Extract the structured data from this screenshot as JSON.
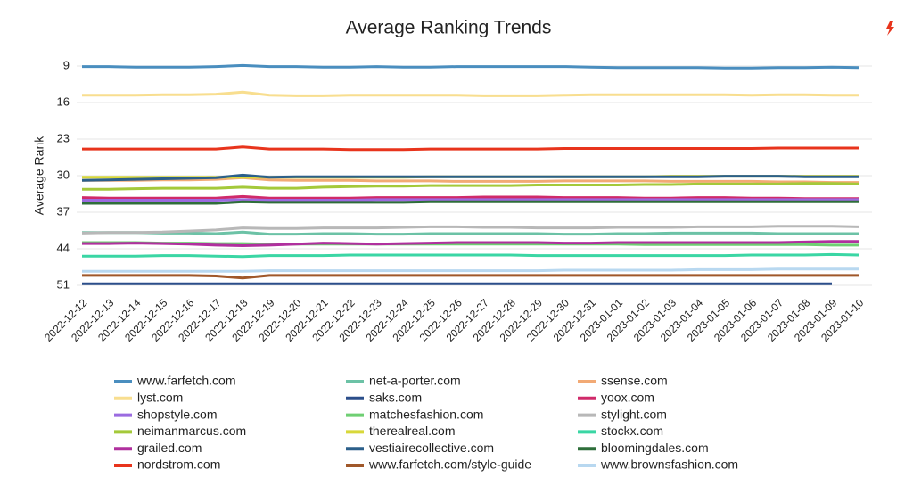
{
  "chart_data": {
    "type": "line",
    "title": "Average Ranking Trends",
    "y_label": "Average Rank",
    "ylim": [
      51,
      9
    ],
    "yticks": [
      9,
      16,
      23,
      30,
      37,
      44,
      51
    ],
    "grid": true,
    "x": [
      "2022-12-12",
      "2022-12-13",
      "2022-12-14",
      "2022-12-15",
      "2022-12-16",
      "2022-12-17",
      "2022-12-18",
      "2022-12-19",
      "2022-12-20",
      "2022-12-21",
      "2022-12-22",
      "2022-12-23",
      "2022-12-24",
      "2022-12-25",
      "2022-12-26",
      "2022-12-27",
      "2022-12-28",
      "2022-12-29",
      "2022-12-30",
      "2022-12-31",
      "2023-01-01",
      "2023-01-02",
      "2023-01-03",
      "2023-01-04",
      "2023-01-05",
      "2023-01-06",
      "2023-01-07",
      "2023-01-08",
      "2023-01-09",
      "2023-01-10"
    ],
    "series": [
      {
        "name": "www.farfetch.com",
        "color": "#4a8ebf",
        "values": [
          9.1,
          9.1,
          9.2,
          9.2,
          9.2,
          9.1,
          8.9,
          9.1,
          9.1,
          9.2,
          9.2,
          9.1,
          9.2,
          9.2,
          9.1,
          9.1,
          9.1,
          9.1,
          9.1,
          9.2,
          9.3,
          9.3,
          9.3,
          9.3,
          9.4,
          9.4,
          9.3,
          9.3,
          9.2,
          9.3
        ]
      },
      {
        "name": "net-a-porter.com",
        "color": "#6cc2a6",
        "values": [
          40.9,
          40.9,
          40.9,
          41.0,
          41.0,
          41.1,
          40.8,
          41.2,
          41.2,
          41.1,
          41.1,
          41.2,
          41.2,
          41.1,
          41.1,
          41.1,
          41.1,
          41.1,
          41.2,
          41.2,
          41.1,
          41.1,
          41.0,
          41.0,
          41.0,
          41.0,
          41.1,
          41.1,
          41.1,
          41.1
        ]
      },
      {
        "name": "ssense.com",
        "color": "#f2aa75",
        "values": [
          30.9,
          30.9,
          30.9,
          30.8,
          30.8,
          30.7,
          30.4,
          30.8,
          30.9,
          30.9,
          30.9,
          31.0,
          31.0,
          31.0,
          31.1,
          31.1,
          31.1,
          31.1,
          31.0,
          31.0,
          31.0,
          31.0,
          31.1,
          31.1,
          31.1,
          31.1,
          31.2,
          31.2,
          31.3,
          31.3
        ]
      },
      {
        "name": "lyst.com",
        "color": "#f8de8f",
        "values": [
          14.6,
          14.6,
          14.6,
          14.5,
          14.5,
          14.4,
          14.0,
          14.6,
          14.7,
          14.7,
          14.6,
          14.6,
          14.6,
          14.6,
          14.6,
          14.7,
          14.7,
          14.7,
          14.6,
          14.5,
          14.5,
          14.5,
          14.5,
          14.5,
          14.5,
          14.6,
          14.5,
          14.5,
          14.6,
          14.6
        ]
      },
      {
        "name": "saks.com",
        "color": "#2b4e8a",
        "values": [
          50.7,
          50.7,
          50.7,
          50.7,
          50.7,
          50.7,
          50.7,
          50.7,
          50.7,
          50.7,
          50.7,
          50.7,
          50.7,
          50.7,
          50.7,
          50.7,
          50.7,
          50.7,
          50.7,
          50.7,
          50.7,
          50.7,
          50.7,
          50.7,
          50.7,
          50.7,
          50.7,
          50.7,
          50.7,
          null
        ]
      },
      {
        "name": "yoox.com",
        "color": "#d02a6a",
        "values": [
          34.2,
          34.3,
          34.3,
          34.3,
          34.3,
          34.3,
          34.0,
          34.3,
          34.3,
          34.3,
          34.3,
          34.2,
          34.2,
          34.2,
          34.2,
          34.1,
          34.1,
          34.1,
          34.2,
          34.2,
          34.2,
          34.3,
          34.3,
          34.2,
          34.2,
          34.3,
          34.3,
          34.4,
          34.4,
          34.4
        ]
      },
      {
        "name": "shopstyle.com",
        "color": "#9b6be0",
        "values": [
          34.7,
          34.7,
          34.7,
          34.7,
          34.7,
          34.7,
          34.6,
          34.7,
          34.7,
          34.7,
          34.7,
          34.6,
          34.6,
          34.6,
          34.6,
          34.6,
          34.6,
          34.6,
          34.6,
          34.6,
          34.6,
          34.6,
          34.6,
          34.6,
          34.6,
          34.6,
          34.6,
          34.6,
          34.6,
          34.6
        ]
      },
      {
        "name": "matchesfashion.com",
        "color": "#6fcf73",
        "values": [
          42.8,
          42.8,
          42.8,
          42.9,
          42.9,
          43.0,
          43.0,
          43.1,
          43.1,
          43.1,
          43.1,
          43.1,
          43.1,
          43.1,
          43.1,
          43.1,
          43.1,
          43.1,
          43.1,
          43.1,
          43.1,
          43.2,
          43.2,
          43.2,
          43.2,
          43.2,
          43.2,
          43.2,
          43.3,
          43.3
        ]
      },
      {
        "name": "stylight.com",
        "color": "#b8b8b8",
        "values": [
          41.0,
          40.9,
          40.9,
          40.8,
          40.6,
          40.4,
          40.0,
          40.1,
          40.1,
          40.0,
          40.0,
          40.0,
          39.9,
          39.8,
          39.8,
          39.9,
          39.9,
          40.0,
          40.0,
          40.0,
          39.9,
          39.9,
          39.9,
          39.8,
          39.8,
          39.8,
          39.7,
          39.7,
          39.7,
          39.8
        ]
      },
      {
        "name": "neimanmarcus.com",
        "color": "#a4c93a",
        "values": [
          32.6,
          32.6,
          32.5,
          32.4,
          32.4,
          32.4,
          32.2,
          32.4,
          32.4,
          32.2,
          32.1,
          32.0,
          32.0,
          31.9,
          31.9,
          31.9,
          31.9,
          31.8,
          31.8,
          31.8,
          31.8,
          31.7,
          31.7,
          31.6,
          31.6,
          31.6,
          31.6,
          31.5,
          31.5,
          31.6
        ]
      },
      {
        "name": "therealreal.com",
        "color": "#d8d83a",
        "values": [
          30.3,
          30.3,
          30.3,
          30.3,
          30.3,
          30.3,
          30.3,
          30.3,
          30.3,
          30.3,
          30.3,
          30.3,
          30.3,
          30.2,
          30.2,
          30.2,
          30.2,
          30.2,
          30.2,
          30.2,
          30.2,
          30.2,
          30.1,
          30.1,
          30.1,
          30.1,
          30.1,
          30.1,
          30.1,
          30.1
        ]
      },
      {
        "name": "stockx.com",
        "color": "#3ad6a4",
        "values": [
          45.4,
          45.4,
          45.4,
          45.3,
          45.3,
          45.4,
          45.5,
          45.3,
          45.3,
          45.3,
          45.2,
          45.2,
          45.2,
          45.2,
          45.2,
          45.2,
          45.2,
          45.3,
          45.3,
          45.3,
          45.3,
          45.3,
          45.3,
          45.3,
          45.3,
          45.2,
          45.2,
          45.2,
          45.1,
          45.2
        ]
      },
      {
        "name": "grailed.com",
        "color": "#b0309e",
        "values": [
          43.0,
          43.0,
          42.9,
          43.0,
          43.1,
          43.3,
          43.4,
          43.3,
          43.1,
          42.9,
          43.0,
          43.1,
          43.0,
          42.9,
          42.8,
          42.8,
          42.8,
          42.8,
          42.9,
          42.9,
          42.8,
          42.8,
          42.8,
          42.8,
          42.8,
          42.8,
          42.8,
          42.7,
          42.6,
          42.6
        ]
      },
      {
        "name": "vestiairecollective.com",
        "color": "#2b5f8a",
        "values": [
          30.9,
          30.8,
          30.7,
          30.6,
          30.5,
          30.4,
          29.9,
          30.3,
          30.2,
          30.2,
          30.2,
          30.2,
          30.2,
          30.2,
          30.2,
          30.2,
          30.2,
          30.2,
          30.2,
          30.2,
          30.2,
          30.2,
          30.2,
          30.2,
          30.1,
          30.1,
          30.1,
          30.2,
          30.2,
          30.2
        ]
      },
      {
        "name": "bloomingdales.com",
        "color": "#2e6e3a",
        "values": [
          35.3,
          35.3,
          35.3,
          35.3,
          35.3,
          35.3,
          35.0,
          35.1,
          35.1,
          35.1,
          35.1,
          35.1,
          35.1,
          35.0,
          35.0,
          35.0,
          35.0,
          35.0,
          35.0,
          35.0,
          35.0,
          35.0,
          35.0,
          35.0,
          35.0,
          35.0,
          35.0,
          35.0,
          35.0,
          35.0
        ]
      },
      {
        "name": "nordstrom.com",
        "color": "#e8341c",
        "values": [
          24.9,
          24.9,
          24.9,
          24.9,
          24.9,
          24.9,
          24.5,
          24.9,
          24.9,
          24.9,
          25.0,
          25.0,
          25.0,
          24.9,
          24.9,
          24.9,
          24.9,
          24.9,
          24.8,
          24.8,
          24.8,
          24.8,
          24.8,
          24.8,
          24.8,
          24.8,
          24.7,
          24.7,
          24.7,
          24.7
        ]
      },
      {
        "name": "www.farfetch.com/style-guide",
        "color": "#a0582a",
        "values": [
          49.1,
          49.1,
          49.1,
          49.1,
          49.1,
          49.2,
          49.6,
          49.1,
          49.1,
          49.1,
          49.1,
          49.1,
          49.1,
          49.1,
          49.1,
          49.1,
          49.1,
          49.1,
          49.1,
          49.1,
          49.1,
          49.1,
          49.1,
          49.1,
          49.1,
          49.1,
          49.1,
          49.1,
          49.1,
          49.1
        ]
      },
      {
        "name": "www.brownsfashion.com",
        "color": "#b8d8f0",
        "values": [
          48.3,
          48.3,
          48.3,
          48.3,
          48.3,
          48.3,
          48.3,
          48.2,
          48.2,
          48.2,
          48.2,
          48.2,
          48.2,
          48.2,
          48.2,
          48.2,
          48.2,
          48.2,
          48.1,
          48.1,
          48.1,
          48.1,
          48.1,
          48.0,
          48.0,
          48.0,
          47.9,
          47.9,
          47.9,
          47.9
        ]
      }
    ]
  }
}
